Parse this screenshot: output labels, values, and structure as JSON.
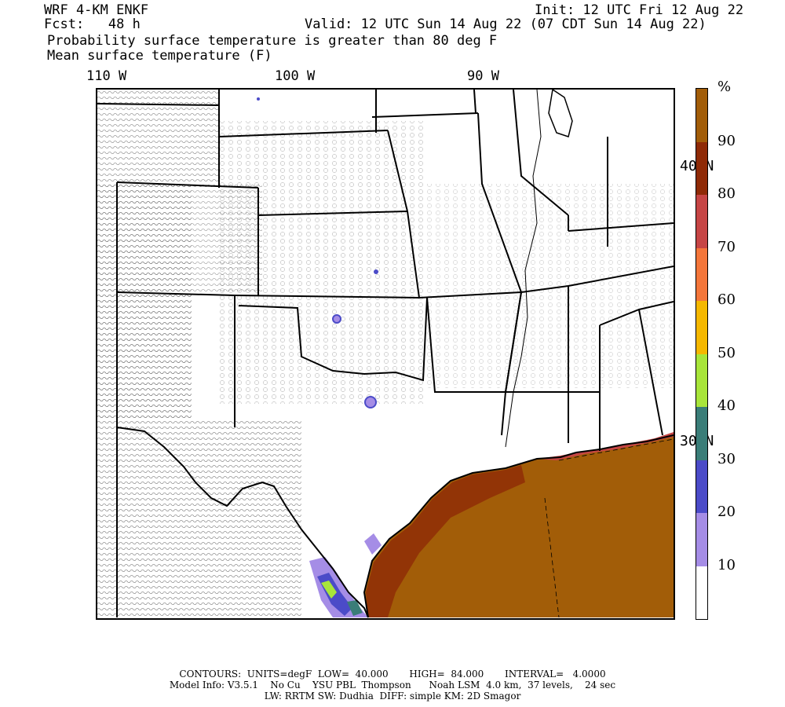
{
  "header": {
    "model": "WRF 4-KM ENKF",
    "fcst": "Fcst:   48 h",
    "init": "Init: 12 UTC Fri 12 Aug 22",
    "valid": "Valid: 12 UTC Sun 14 Aug 22 (07 CDT Sun 14 Aug 22)",
    "field1": "Probability surface temperature is greater than 80 deg F",
    "field2": "Mean surface temperature (F)"
  },
  "longitude_labels": [
    "110 W",
    "100 W",
    "90 W"
  ],
  "latitude_labels": [
    "40 N",
    "30 N"
  ],
  "colorbar": {
    "unit": "%",
    "levels": [
      "10",
      "20",
      "30",
      "40",
      "50",
      "60",
      "70",
      "80",
      "90"
    ],
    "colors": [
      "#ffffff",
      "#a58de6",
      "#4b4bc8",
      "#3a7d78",
      "#a8e53a",
      "#f5b800",
      "#f4763a",
      "#c64545",
      "#8f2a06",
      "#a25d08"
    ]
  },
  "footer": {
    "contours": "CONTOURS:  UNITS=degF  LOW=  40.000       HIGH=  84.000       INTERVAL=   4.0000",
    "model_info": "Model Info: V3.5.1    No Cu    YSU PBL  Thompson      Noah LSM  4.0 km,  37 levels,    24 sec",
    "physics": "LW: RRTM SW: Dudhia  DIFF: simple KM: 2D Smagor"
  }
}
